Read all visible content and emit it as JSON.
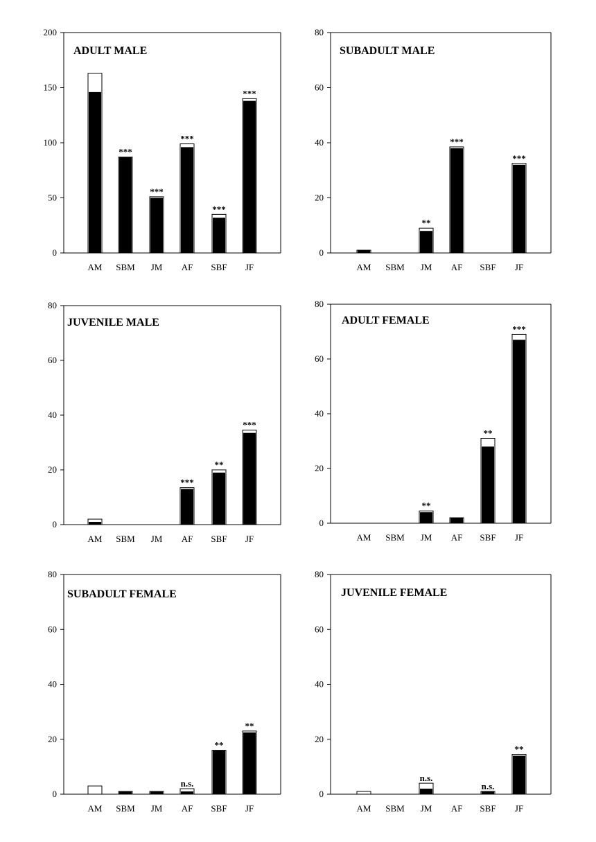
{
  "chart_data": [
    {
      "type": "bar",
      "title": "ADULT MALE",
      "categories": [
        "AM",
        "SBM",
        "JM",
        "AF",
        "SBF",
        "JF"
      ],
      "ylim": [
        0,
        200
      ],
      "yticks": [
        "0",
        "50",
        "100",
        "150",
        "200"
      ],
      "series": [
        {
          "values": [
            146,
            87,
            50,
            96,
            32,
            138
          ]
        },
        {
          "values": [
            163,
            87,
            51,
            99,
            35,
            140
          ]
        }
      ],
      "annotations": [
        "",
        "***",
        "***",
        "***",
        "***",
        "***"
      ]
    },
    {
      "type": "bar",
      "title": "SUBADULT MALE",
      "categories": [
        "AM",
        "SBM",
        "JM",
        "AF",
        "SBF",
        "JF"
      ],
      "ylim": [
        0,
        80
      ],
      "yticks": [
        "0",
        "20",
        "40",
        "60",
        "80"
      ],
      "series": [
        {
          "values": [
            1,
            0,
            8,
            38,
            0,
            32
          ]
        },
        {
          "values": [
            1,
            0,
            9,
            38.5,
            0,
            32.5
          ]
        }
      ],
      "annotations": [
        "",
        "",
        "**",
        "***",
        "",
        "***"
      ]
    },
    {
      "type": "bar",
      "title": "JUVENILE MALE",
      "categories": [
        "AM",
        "SBM",
        "JM",
        "AF",
        "SBF",
        "JF"
      ],
      "ylim": [
        0,
        80
      ],
      "yticks": [
        "0",
        "20",
        "40",
        "60",
        "80"
      ],
      "series": [
        {
          "values": [
            1,
            0,
            0,
            13,
            19,
            33.5
          ]
        },
        {
          "values": [
            2,
            0,
            0,
            13.5,
            20,
            34.5
          ]
        }
      ],
      "annotations": [
        "",
        "",
        "",
        "***",
        "**",
        "***"
      ]
    },
    {
      "type": "bar",
      "title": "ADULT FEMALE",
      "categories": [
        "AM",
        "SBM",
        "JM",
        "AF",
        "SBF",
        "JF"
      ],
      "ylim": [
        0,
        80
      ],
      "yticks": [
        "0",
        "20",
        "40",
        "60",
        "80"
      ],
      "series": [
        {
          "values": [
            0,
            0,
            4,
            2,
            28,
            67
          ]
        },
        {
          "values": [
            0,
            0,
            4.5,
            2,
            31,
            69
          ]
        }
      ],
      "annotations": [
        "",
        "",
        "**",
        "",
        "**",
        "***"
      ]
    },
    {
      "type": "bar",
      "title": "SUBADULT FEMALE",
      "categories": [
        "AM",
        "SBM",
        "JM",
        "AF",
        "SBF",
        "JF"
      ],
      "ylim": [
        0,
        80
      ],
      "yticks": [
        "0",
        "20",
        "40",
        "60",
        "80"
      ],
      "series": [
        {
          "values": [
            0,
            1,
            1,
            1,
            16,
            22.5
          ]
        },
        {
          "values": [
            3,
            1,
            1,
            2,
            16,
            23
          ]
        }
      ],
      "annotations": [
        "",
        "",
        "",
        "n.s.",
        "**",
        "**"
      ]
    },
    {
      "type": "bar",
      "title": "JUVENILE FEMALE",
      "categories": [
        "AM",
        "SBM",
        "JM",
        "AF",
        "SBF",
        "JF"
      ],
      "ylim": [
        0,
        80
      ],
      "yticks": [
        "0",
        "20",
        "40",
        "60",
        "80"
      ],
      "series": [
        {
          "values": [
            0,
            0,
            2,
            0,
            1,
            14
          ]
        },
        {
          "values": [
            1,
            0,
            4,
            0,
            1,
            14.5
          ]
        }
      ],
      "annotations": [
        "",
        "",
        "n.s.",
        "",
        "n.s.",
        "**"
      ]
    }
  ],
  "colors": {
    "observed": "#000000",
    "expected": "#ffffff",
    "axis": "#000000"
  }
}
